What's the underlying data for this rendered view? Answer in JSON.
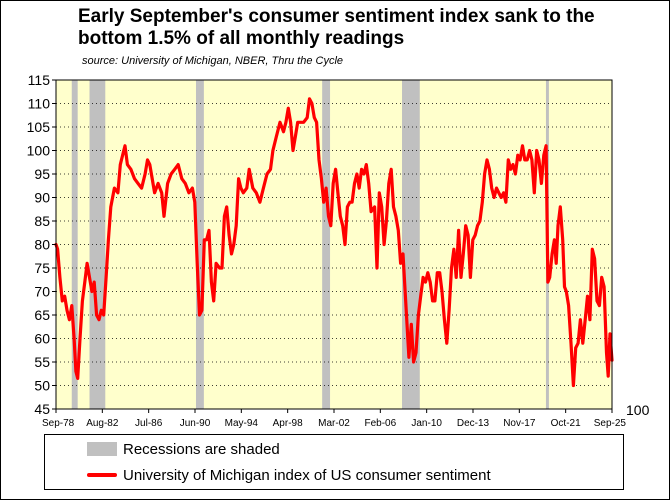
{
  "chart_data": {
    "type": "line",
    "title": "Early September's consumer sentiment index sank to the bottom 1.5% of all monthly readings",
    "subtitle": "source: University of Michigan, NBER, Thru the Cycle",
    "ylim": [
      45,
      115
    ],
    "yticks": [
      115,
      110,
      105,
      100,
      95,
      90,
      85,
      80,
      75,
      70,
      65,
      60,
      55,
      50,
      45
    ],
    "xlim": [
      1978.667,
      2025.667
    ],
    "xticks": [
      {
        "label": "Sep-78",
        "t": 1978.667
      },
      {
        "label": "Aug-82",
        "t": 1982.583
      },
      {
        "label": "Jul-86",
        "t": 1986.5
      },
      {
        "label": "Jun-90",
        "t": 1990.417
      },
      {
        "label": "May-94",
        "t": 1994.333
      },
      {
        "label": "Apr-98",
        "t": 1998.25
      },
      {
        "label": "Mar-02",
        "t": 2002.167
      },
      {
        "label": "Feb-06",
        "t": 2006.083
      },
      {
        "label": "Jan-10",
        "t": 2010.0
      },
      {
        "label": "Dec-13",
        "t": 2013.917
      },
      {
        "label": "Nov-17",
        "t": 2017.833
      },
      {
        "label": "Oct-21",
        "t": 2021.75
      },
      {
        "label": "Sep-25",
        "t": 2025.667
      }
    ],
    "secondary_axis_label": "100",
    "recessions": [
      {
        "start": 1980.0,
        "end": 1980.5
      },
      {
        "start": 1981.5,
        "end": 1982.833
      },
      {
        "start": 1990.5,
        "end": 1991.167
      },
      {
        "start": 2001.167,
        "end": 2001.833
      },
      {
        "start": 2007.917,
        "end": 2009.417
      },
      {
        "start": 2020.083,
        "end": 2020.333
      }
    ],
    "series": [
      {
        "name": "University of Michigan index of US consumer sentiment",
        "color": "#ff0000",
        "points": [
          [
            1978.667,
            80
          ],
          [
            1978.8,
            79
          ],
          [
            1979.0,
            73
          ],
          [
            1979.2,
            68
          ],
          [
            1979.4,
            69
          ],
          [
            1979.6,
            66
          ],
          [
            1979.8,
            64
          ],
          [
            1980.0,
            67
          ],
          [
            1980.2,
            60
          ],
          [
            1980.35,
            53
          ],
          [
            1980.5,
            51.5
          ],
          [
            1980.7,
            60
          ],
          [
            1980.9,
            68
          ],
          [
            1981.1,
            72
          ],
          [
            1981.3,
            76
          ],
          [
            1981.5,
            73
          ],
          [
            1981.7,
            70
          ],
          [
            1981.9,
            72
          ],
          [
            1982.1,
            65
          ],
          [
            1982.3,
            64
          ],
          [
            1982.5,
            66
          ],
          [
            1982.7,
            65
          ],
          [
            1982.9,
            73
          ],
          [
            1983.1,
            81
          ],
          [
            1983.3,
            88
          ],
          [
            1983.6,
            92
          ],
          [
            1983.9,
            91
          ],
          [
            1984.1,
            97
          ],
          [
            1984.3,
            99
          ],
          [
            1984.5,
            101
          ],
          [
            1984.7,
            97
          ],
          [
            1985.0,
            96
          ],
          [
            1985.3,
            94
          ],
          [
            1985.6,
            93
          ],
          [
            1985.9,
            92
          ],
          [
            1986.2,
            95
          ],
          [
            1986.4,
            98
          ],
          [
            1986.6,
            97
          ],
          [
            1986.8,
            94
          ],
          [
            1987.0,
            91
          ],
          [
            1987.3,
            93
          ],
          [
            1987.6,
            91
          ],
          [
            1987.8,
            86
          ],
          [
            1988.1,
            93
          ],
          [
            1988.4,
            95
          ],
          [
            1988.7,
            96
          ],
          [
            1989.0,
            97
          ],
          [
            1989.3,
            94
          ],
          [
            1989.6,
            93
          ],
          [
            1989.9,
            91
          ],
          [
            1990.2,
            92
          ],
          [
            1990.4,
            89
          ],
          [
            1990.6,
            76
          ],
          [
            1990.8,
            65
          ],
          [
            1991.0,
            66
          ],
          [
            1991.2,
            81
          ],
          [
            1991.4,
            81
          ],
          [
            1991.6,
            83
          ],
          [
            1991.8,
            72
          ],
          [
            1992.0,
            68
          ],
          [
            1992.2,
            76
          ],
          [
            1992.5,
            75
          ],
          [
            1992.7,
            75
          ],
          [
            1992.9,
            86
          ],
          [
            1993.1,
            88
          ],
          [
            1993.3,
            82
          ],
          [
            1993.5,
            78
          ],
          [
            1993.7,
            80
          ],
          [
            1993.9,
            84
          ],
          [
            1994.1,
            94
          ],
          [
            1994.3,
            92
          ],
          [
            1994.5,
            91
          ],
          [
            1994.8,
            92
          ],
          [
            1995.0,
            96
          ],
          [
            1995.3,
            92
          ],
          [
            1995.6,
            91
          ],
          [
            1995.9,
            89
          ],
          [
            1996.2,
            92
          ],
          [
            1996.5,
            95
          ],
          [
            1996.8,
            96
          ],
          [
            1997.0,
            100
          ],
          [
            1997.3,
            103
          ],
          [
            1997.6,
            106
          ],
          [
            1997.9,
            104
          ],
          [
            1998.1,
            106
          ],
          [
            1998.3,
            109
          ],
          [
            1998.5,
            106
          ],
          [
            1998.7,
            100
          ],
          [
            1998.9,
            103
          ],
          [
            1999.1,
            106
          ],
          [
            1999.3,
            106
          ],
          [
            1999.6,
            106
          ],
          [
            1999.9,
            107
          ],
          [
            2000.1,
            111
          ],
          [
            2000.3,
            110
          ],
          [
            2000.5,
            107
          ],
          [
            2000.7,
            106
          ],
          [
            2000.9,
            98
          ],
          [
            2001.1,
            94
          ],
          [
            2001.3,
            89
          ],
          [
            2001.5,
            92
          ],
          [
            2001.7,
            86
          ],
          [
            2001.9,
            84
          ],
          [
            2002.1,
            93
          ],
          [
            2002.3,
            96
          ],
          [
            2002.5,
            91
          ],
          [
            2002.7,
            86
          ],
          [
            2002.9,
            84
          ],
          [
            2003.1,
            80
          ],
          [
            2003.3,
            88
          ],
          [
            2003.5,
            89
          ],
          [
            2003.7,
            89
          ],
          [
            2003.9,
            93
          ],
          [
            2004.1,
            95
          ],
          [
            2004.3,
            92
          ],
          [
            2004.5,
            96
          ],
          [
            2004.7,
            95
          ],
          [
            2004.9,
            97
          ],
          [
            2005.1,
            93
          ],
          [
            2005.3,
            87
          ],
          [
            2005.6,
            88
          ],
          [
            2005.8,
            75
          ],
          [
            2006.0,
            91
          ],
          [
            2006.2,
            88
          ],
          [
            2006.4,
            80
          ],
          [
            2006.6,
            85
          ],
          [
            2006.8,
            93
          ],
          [
            2007.0,
            96
          ],
          [
            2007.2,
            88
          ],
          [
            2007.4,
            86
          ],
          [
            2007.6,
            83
          ],
          [
            2007.8,
            76
          ],
          [
            2008.0,
            78
          ],
          [
            2008.2,
            69
          ],
          [
            2008.5,
            56
          ],
          [
            2008.7,
            63
          ],
          [
            2008.9,
            55
          ],
          [
            2009.1,
            57
          ],
          [
            2009.3,
            65
          ],
          [
            2009.5,
            69
          ],
          [
            2009.7,
            73
          ],
          [
            2009.9,
            72
          ],
          [
            2010.1,
            74
          ],
          [
            2010.3,
            72
          ],
          [
            2010.5,
            68
          ],
          [
            2010.7,
            68
          ],
          [
            2010.9,
            74
          ],
          [
            2011.1,
            74
          ],
          [
            2011.3,
            70
          ],
          [
            2011.5,
            64
          ],
          [
            2011.7,
            59
          ],
          [
            2011.9,
            66
          ],
          [
            2012.1,
            75
          ],
          [
            2012.3,
            79
          ],
          [
            2012.5,
            73
          ],
          [
            2012.7,
            83
          ],
          [
            2012.9,
            73
          ],
          [
            2013.1,
            78
          ],
          [
            2013.3,
            84
          ],
          [
            2013.5,
            82
          ],
          [
            2013.7,
            73
          ],
          [
            2013.9,
            81
          ],
          [
            2014.1,
            82
          ],
          [
            2014.3,
            84
          ],
          [
            2014.5,
            85
          ],
          [
            2014.7,
            89
          ],
          [
            2014.9,
            95
          ],
          [
            2015.1,
            98
          ],
          [
            2015.3,
            96
          ],
          [
            2015.5,
            92
          ],
          [
            2015.7,
            90
          ],
          [
            2015.9,
            92
          ],
          [
            2016.1,
            91
          ],
          [
            2016.3,
            90
          ],
          [
            2016.5,
            91
          ],
          [
            2016.7,
            89
          ],
          [
            2016.9,
            98
          ],
          [
            2017.1,
            96
          ],
          [
            2017.3,
            97
          ],
          [
            2017.5,
            95
          ],
          [
            2017.7,
            99
          ],
          [
            2017.9,
            98
          ],
          [
            2018.1,
            101
          ],
          [
            2018.3,
            98
          ],
          [
            2018.5,
            98
          ],
          [
            2018.7,
            100
          ],
          [
            2018.9,
            98
          ],
          [
            2019.1,
            91
          ],
          [
            2019.3,
            100
          ],
          [
            2019.5,
            98
          ],
          [
            2019.7,
            93
          ],
          [
            2019.9,
            99
          ],
          [
            2020.1,
            101
          ],
          [
            2020.25,
            72
          ],
          [
            2020.4,
            73
          ],
          [
            2020.6,
            78
          ],
          [
            2020.8,
            81
          ],
          [
            2020.95,
            76
          ],
          [
            2021.1,
            84
          ],
          [
            2021.3,
            88
          ],
          [
            2021.5,
            81
          ],
          [
            2021.65,
            71
          ],
          [
            2021.8,
            70
          ],
          [
            2022.0,
            67
          ],
          [
            2022.2,
            59
          ],
          [
            2022.4,
            50
          ],
          [
            2022.6,
            58
          ],
          [
            2022.8,
            59
          ],
          [
            2023.0,
            64
          ],
          [
            2023.2,
            59
          ],
          [
            2023.4,
            64
          ],
          [
            2023.6,
            69
          ],
          [
            2023.8,
            64
          ],
          [
            2024.0,
            79
          ],
          [
            2024.2,
            77
          ],
          [
            2024.4,
            68
          ],
          [
            2024.6,
            67
          ],
          [
            2024.8,
            73
          ],
          [
            2025.0,
            71
          ],
          [
            2025.2,
            57
          ],
          [
            2025.35,
            52
          ],
          [
            2025.5,
            61
          ],
          [
            2025.667,
            55.4
          ]
        ]
      }
    ]
  },
  "legend": {
    "recessions_label": "Recessions are shaded",
    "series_label": "University of Michigan index of US consumer sentiment"
  },
  "colors": {
    "plot_background": "#ffffcc",
    "recession_fill": "#c0c0c0",
    "line": "#ff0000"
  }
}
